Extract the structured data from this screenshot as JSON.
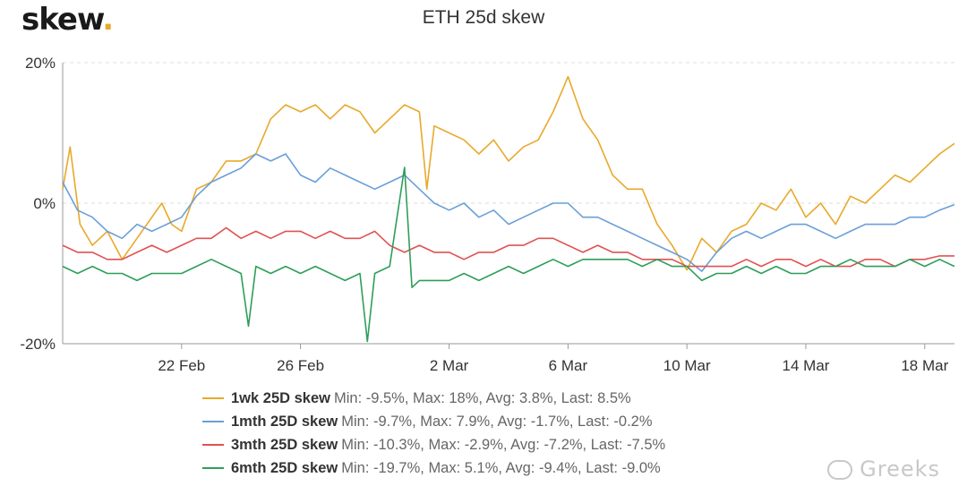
{
  "brand": {
    "name": "skew",
    "dot": "."
  },
  "watermark": "Greeks",
  "chart_data": {
    "type": "line",
    "title": "ETH 25d skew",
    "xlabel": "",
    "ylabel": "",
    "x_range": [
      "2020-02-18",
      "2020-03-19"
    ],
    "x_ticks": [
      {
        "date": "2020-02-22",
        "label": "22 Feb"
      },
      {
        "date": "2020-02-26",
        "label": "26 Feb"
      },
      {
        "date": "2020-03-02",
        "label": "2 Mar"
      },
      {
        "date": "2020-03-06",
        "label": "6 Mar"
      },
      {
        "date": "2020-03-10",
        "label": "10 Mar"
      },
      {
        "date": "2020-03-14",
        "label": "14 Mar"
      },
      {
        "date": "2020-03-18",
        "label": "18 Mar"
      }
    ],
    "y_ticks": [
      {
        "value": 20,
        "label": "20%"
      },
      {
        "value": 0,
        "label": "0%"
      },
      {
        "value": -20,
        "label": "-20%"
      }
    ],
    "ylim": [
      -20,
      20
    ],
    "grid": true,
    "legend_position": "bottom",
    "series": [
      {
        "name": "1wk 25D skew",
        "stats": "Min: -9.5%, Max: 18%, Avg: 3.8%, Last: 8.5%",
        "color": "#e8a92a",
        "points": [
          [
            "2020-02-18",
            2
          ],
          [
            "2020-02-18T06",
            8
          ],
          [
            "2020-02-18T14",
            -3
          ],
          [
            "2020-02-19",
            -6
          ],
          [
            "2020-02-19T12",
            -4
          ],
          [
            "2020-02-20",
            -8
          ],
          [
            "2020-02-20T12",
            -5
          ],
          [
            "2020-02-21",
            -2
          ],
          [
            "2020-02-21T08",
            0
          ],
          [
            "2020-02-21T16",
            -3
          ],
          [
            "2020-02-22",
            -4
          ],
          [
            "2020-02-22T12",
            2
          ],
          [
            "2020-02-23",
            3
          ],
          [
            "2020-02-23T12",
            6
          ],
          [
            "2020-02-24",
            6
          ],
          [
            "2020-02-24T12",
            7
          ],
          [
            "2020-02-25",
            12
          ],
          [
            "2020-02-25T12",
            14
          ],
          [
            "2020-02-26",
            13
          ],
          [
            "2020-02-26T12",
            14
          ],
          [
            "2020-02-27",
            12
          ],
          [
            "2020-02-27T12",
            14
          ],
          [
            "2020-02-28",
            13
          ],
          [
            "2020-02-28T12",
            10
          ],
          [
            "2020-02-29",
            12
          ],
          [
            "2020-02-29T12",
            14
          ],
          [
            "2020-03-01",
            13
          ],
          [
            "2020-03-01T06",
            2
          ],
          [
            "2020-03-01T12",
            11
          ],
          [
            "2020-03-02",
            10
          ],
          [
            "2020-03-02T12",
            9
          ],
          [
            "2020-03-03",
            7
          ],
          [
            "2020-03-03T12",
            9
          ],
          [
            "2020-03-04",
            6
          ],
          [
            "2020-03-04T12",
            8
          ],
          [
            "2020-03-05",
            9
          ],
          [
            "2020-03-05T12",
            13
          ],
          [
            "2020-03-06",
            18
          ],
          [
            "2020-03-06T12",
            12
          ],
          [
            "2020-03-07",
            9
          ],
          [
            "2020-03-07T12",
            4
          ],
          [
            "2020-03-08",
            2
          ],
          [
            "2020-03-08T12",
            2
          ],
          [
            "2020-03-09",
            -3
          ],
          [
            "2020-03-09T12",
            -6
          ],
          [
            "2020-03-10",
            -9.5
          ],
          [
            "2020-03-10T12",
            -5
          ],
          [
            "2020-03-11",
            -7
          ],
          [
            "2020-03-11T12",
            -4
          ],
          [
            "2020-03-12",
            -3
          ],
          [
            "2020-03-12T12",
            0
          ],
          [
            "2020-03-13",
            -1
          ],
          [
            "2020-03-13T12",
            2
          ],
          [
            "2020-03-14",
            -2
          ],
          [
            "2020-03-14T12",
            0
          ],
          [
            "2020-03-15",
            -3
          ],
          [
            "2020-03-15T12",
            1
          ],
          [
            "2020-03-16",
            0
          ],
          [
            "2020-03-16T12",
            2
          ],
          [
            "2020-03-17",
            4
          ],
          [
            "2020-03-17T12",
            3
          ],
          [
            "2020-03-18",
            5
          ],
          [
            "2020-03-18T12",
            7
          ],
          [
            "2020-03-19",
            8.5
          ]
        ]
      },
      {
        "name": "1mth 25D skew",
        "stats": "Min: -9.7%, Max: 7.9%, Avg: -1.7%, Last: -0.2%",
        "color": "#6a9fd8",
        "points": [
          [
            "2020-02-18",
            3
          ],
          [
            "2020-02-18T12",
            -1
          ],
          [
            "2020-02-19",
            -2
          ],
          [
            "2020-02-19T12",
            -4
          ],
          [
            "2020-02-20",
            -5
          ],
          [
            "2020-02-20T12",
            -3
          ],
          [
            "2020-02-21",
            -4
          ],
          [
            "2020-02-21T12",
            -3
          ],
          [
            "2020-02-22",
            -2
          ],
          [
            "2020-02-22T12",
            1
          ],
          [
            "2020-02-23",
            3
          ],
          [
            "2020-02-23T12",
            4
          ],
          [
            "2020-02-24",
            5
          ],
          [
            "2020-02-24T12",
            7
          ],
          [
            "2020-02-25",
            6
          ],
          [
            "2020-02-25T12",
            7
          ],
          [
            "2020-02-26",
            4
          ],
          [
            "2020-02-26T12",
            3
          ],
          [
            "2020-02-27",
            5
          ],
          [
            "2020-02-27T12",
            4
          ],
          [
            "2020-02-28",
            3
          ],
          [
            "2020-02-28T12",
            2
          ],
          [
            "2020-02-29",
            3
          ],
          [
            "2020-02-29T12",
            4
          ],
          [
            "2020-03-01",
            2
          ],
          [
            "2020-03-01T12",
            0
          ],
          [
            "2020-03-02",
            -1
          ],
          [
            "2020-03-02T12",
            0
          ],
          [
            "2020-03-03",
            -2
          ],
          [
            "2020-03-03T12",
            -1
          ],
          [
            "2020-03-04",
            -3
          ],
          [
            "2020-03-04T12",
            -2
          ],
          [
            "2020-03-05",
            -1
          ],
          [
            "2020-03-05T12",
            0
          ],
          [
            "2020-03-06",
            0
          ],
          [
            "2020-03-06T12",
            -2
          ],
          [
            "2020-03-07",
            -2
          ],
          [
            "2020-03-07T12",
            -3
          ],
          [
            "2020-03-08",
            -4
          ],
          [
            "2020-03-08T12",
            -5
          ],
          [
            "2020-03-09",
            -6
          ],
          [
            "2020-03-09T12",
            -7
          ],
          [
            "2020-03-10",
            -8
          ],
          [
            "2020-03-10T12",
            -9.7
          ],
          [
            "2020-03-11",
            -7
          ],
          [
            "2020-03-11T12",
            -5
          ],
          [
            "2020-03-12",
            -4
          ],
          [
            "2020-03-12T12",
            -5
          ],
          [
            "2020-03-13",
            -4
          ],
          [
            "2020-03-13T12",
            -3
          ],
          [
            "2020-03-14",
            -3
          ],
          [
            "2020-03-14T12",
            -4
          ],
          [
            "2020-03-15",
            -5
          ],
          [
            "2020-03-15T12",
            -4
          ],
          [
            "2020-03-16",
            -3
          ],
          [
            "2020-03-16T12",
            -3
          ],
          [
            "2020-03-17",
            -3
          ],
          [
            "2020-03-17T12",
            -2
          ],
          [
            "2020-03-18",
            -2
          ],
          [
            "2020-03-18T12",
            -1
          ],
          [
            "2020-03-19",
            -0.2
          ]
        ]
      },
      {
        "name": "3mth 25D skew",
        "stats": "Min: -10.3%, Max: -2.9%, Avg: -7.2%, Last: -7.5%",
        "color": "#e05252",
        "points": [
          [
            "2020-02-18",
            -6
          ],
          [
            "2020-02-18T12",
            -7
          ],
          [
            "2020-02-19",
            -7
          ],
          [
            "2020-02-19T12",
            -8
          ],
          [
            "2020-02-20",
            -8
          ],
          [
            "2020-02-20T12",
            -7
          ],
          [
            "2020-02-21",
            -6
          ],
          [
            "2020-02-21T12",
            -7
          ],
          [
            "2020-02-22",
            -6
          ],
          [
            "2020-02-22T12",
            -5
          ],
          [
            "2020-02-23",
            -5
          ],
          [
            "2020-02-23T12",
            -3.5
          ],
          [
            "2020-02-24",
            -5
          ],
          [
            "2020-02-24T12",
            -4
          ],
          [
            "2020-02-25",
            -5
          ],
          [
            "2020-02-25T12",
            -4
          ],
          [
            "2020-02-26",
            -4
          ],
          [
            "2020-02-26T12",
            -5
          ],
          [
            "2020-02-27",
            -4
          ],
          [
            "2020-02-27T12",
            -5
          ],
          [
            "2020-02-28",
            -5
          ],
          [
            "2020-02-28T12",
            -4
          ],
          [
            "2020-02-29",
            -6
          ],
          [
            "2020-02-29T12",
            -7
          ],
          [
            "2020-03-01",
            -6
          ],
          [
            "2020-03-01T12",
            -7
          ],
          [
            "2020-03-02",
            -7
          ],
          [
            "2020-03-02T12",
            -8
          ],
          [
            "2020-03-03",
            -7
          ],
          [
            "2020-03-03T12",
            -7
          ],
          [
            "2020-03-04",
            -6
          ],
          [
            "2020-03-04T12",
            -6
          ],
          [
            "2020-03-05",
            -5
          ],
          [
            "2020-03-05T12",
            -5
          ],
          [
            "2020-03-06",
            -6
          ],
          [
            "2020-03-06T12",
            -7
          ],
          [
            "2020-03-07",
            -6
          ],
          [
            "2020-03-07T12",
            -7
          ],
          [
            "2020-03-08",
            -7
          ],
          [
            "2020-03-08T12",
            -8
          ],
          [
            "2020-03-09",
            -8
          ],
          [
            "2020-03-09T12",
            -8
          ],
          [
            "2020-03-10",
            -9
          ],
          [
            "2020-03-10T12",
            -9
          ],
          [
            "2020-03-11",
            -9
          ],
          [
            "2020-03-11T12",
            -9
          ],
          [
            "2020-03-12",
            -8
          ],
          [
            "2020-03-12T12",
            -9
          ],
          [
            "2020-03-13",
            -8
          ],
          [
            "2020-03-13T12",
            -8
          ],
          [
            "2020-03-14",
            -9
          ],
          [
            "2020-03-14T12",
            -8
          ],
          [
            "2020-03-15",
            -9
          ],
          [
            "2020-03-15T12",
            -9
          ],
          [
            "2020-03-16",
            -8
          ],
          [
            "2020-03-16T12",
            -8
          ],
          [
            "2020-03-17",
            -9
          ],
          [
            "2020-03-17T12",
            -8
          ],
          [
            "2020-03-18",
            -8
          ],
          [
            "2020-03-18T12",
            -7.5
          ],
          [
            "2020-03-19",
            -7.5
          ]
        ]
      },
      {
        "name": "6mth 25D skew",
        "stats": "Min: -19.7%, Max: 5.1%, Avg: -9.4%, Last: -9.0%",
        "color": "#2e9e5a",
        "points": [
          [
            "2020-02-18",
            -9
          ],
          [
            "2020-02-18T12",
            -10
          ],
          [
            "2020-02-19",
            -9
          ],
          [
            "2020-02-19T12",
            -10
          ],
          [
            "2020-02-20",
            -10
          ],
          [
            "2020-02-20T12",
            -11
          ],
          [
            "2020-02-21",
            -10
          ],
          [
            "2020-02-21T12",
            -10
          ],
          [
            "2020-02-22",
            -10
          ],
          [
            "2020-02-22T12",
            -9
          ],
          [
            "2020-02-23",
            -8
          ],
          [
            "2020-02-23T12",
            -9
          ],
          [
            "2020-02-24",
            -10
          ],
          [
            "2020-02-24T06",
            -17.5
          ],
          [
            "2020-02-24T12",
            -9
          ],
          [
            "2020-02-25",
            -10
          ],
          [
            "2020-02-25T12",
            -9
          ],
          [
            "2020-02-26",
            -10
          ],
          [
            "2020-02-26T12",
            -9
          ],
          [
            "2020-02-27",
            -10
          ],
          [
            "2020-02-27T12",
            -11
          ],
          [
            "2020-02-28",
            -10
          ],
          [
            "2020-02-28T06",
            -19.7
          ],
          [
            "2020-02-28T12",
            -10
          ],
          [
            "2020-02-29",
            -9
          ],
          [
            "2020-02-29T12",
            5.1
          ],
          [
            "2020-02-29T18",
            -12
          ],
          [
            "2020-03-01",
            -11
          ],
          [
            "2020-03-01T12",
            -11
          ],
          [
            "2020-03-02",
            -11
          ],
          [
            "2020-03-02T12",
            -10
          ],
          [
            "2020-03-03",
            -11
          ],
          [
            "2020-03-03T12",
            -10
          ],
          [
            "2020-03-04",
            -9
          ],
          [
            "2020-03-04T12",
            -10
          ],
          [
            "2020-03-05",
            -9
          ],
          [
            "2020-03-05T12",
            -8
          ],
          [
            "2020-03-06",
            -9
          ],
          [
            "2020-03-06T12",
            -8
          ],
          [
            "2020-03-07",
            -8
          ],
          [
            "2020-03-07T12",
            -8
          ],
          [
            "2020-03-08",
            -8
          ],
          [
            "2020-03-08T12",
            -9
          ],
          [
            "2020-03-09",
            -8
          ],
          [
            "2020-03-09T12",
            -9
          ],
          [
            "2020-03-10",
            -9
          ],
          [
            "2020-03-10T12",
            -11
          ],
          [
            "2020-03-11",
            -10
          ],
          [
            "2020-03-11T12",
            -10
          ],
          [
            "2020-03-12",
            -9
          ],
          [
            "2020-03-12T12",
            -10
          ],
          [
            "2020-03-13",
            -9
          ],
          [
            "2020-03-13T12",
            -10
          ],
          [
            "2020-03-14",
            -10
          ],
          [
            "2020-03-14T12",
            -9
          ],
          [
            "2020-03-15",
            -9
          ],
          [
            "2020-03-15T12",
            -8
          ],
          [
            "2020-03-16",
            -9
          ],
          [
            "2020-03-16T12",
            -9
          ],
          [
            "2020-03-17",
            -9
          ],
          [
            "2020-03-17T12",
            -8
          ],
          [
            "2020-03-18",
            -9
          ],
          [
            "2020-03-18T12",
            -8
          ],
          [
            "2020-03-19",
            -9
          ]
        ]
      }
    ]
  }
}
